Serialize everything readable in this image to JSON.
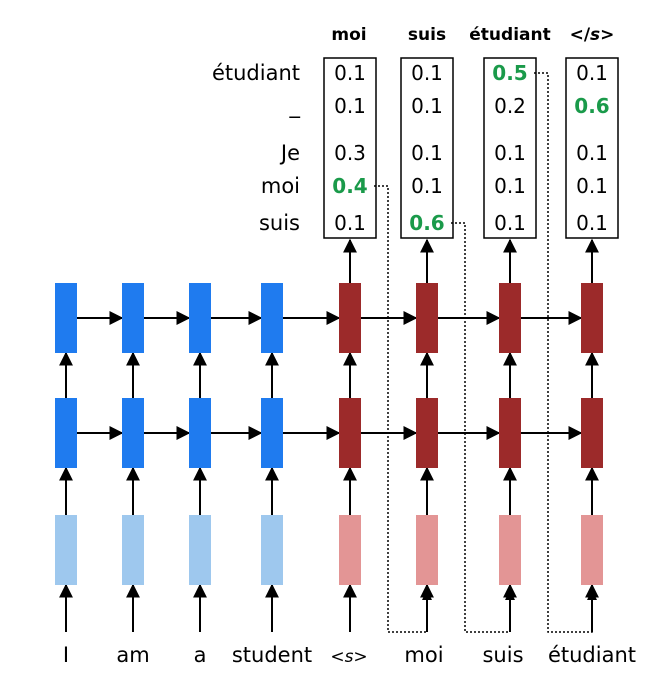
{
  "colors": {
    "encoder_hidden": "#1f7bef",
    "encoder_embed": "#9ec8ee",
    "decoder_hidden": "#9c2a2a",
    "decoder_embed": "#e39595",
    "highlight": "#1a9a4a"
  },
  "vocab_labels": [
    "étudiant",
    "_",
    "Je",
    "moi",
    "suis"
  ],
  "output_headers": [
    {
      "pre": "moi",
      "it": "",
      "post": ""
    },
    {
      "pre": "suis",
      "it": "",
      "post": ""
    },
    {
      "pre": "étudiant",
      "it": "",
      "post": ""
    },
    {
      "pre": "</",
      "it": "s",
      "post": ">"
    }
  ],
  "probabilities": [
    [
      "0.1",
      "0.1",
      "0.3",
      "0.4",
      "0.1"
    ],
    [
      "0.1",
      "0.1",
      "0.1",
      "0.1",
      "0.6"
    ],
    [
      "0.5",
      "0.2",
      "0.1",
      "0.1",
      "0.1"
    ],
    [
      "0.1",
      "0.6",
      "0.1",
      "0.1",
      "0.1"
    ]
  ],
  "highlighted_rows": [
    3,
    4,
    0,
    1
  ],
  "source_words": [
    "I",
    "am",
    "a",
    "student"
  ],
  "target_inputs": [
    {
      "pre": "<",
      "it": "s",
      "post": ">"
    },
    {
      "pre": "moi",
      "it": "",
      "post": ""
    },
    {
      "pre": "suis",
      "it": "",
      "post": ""
    },
    {
      "pre": "étudiant",
      "it": "",
      "post": ""
    }
  ]
}
